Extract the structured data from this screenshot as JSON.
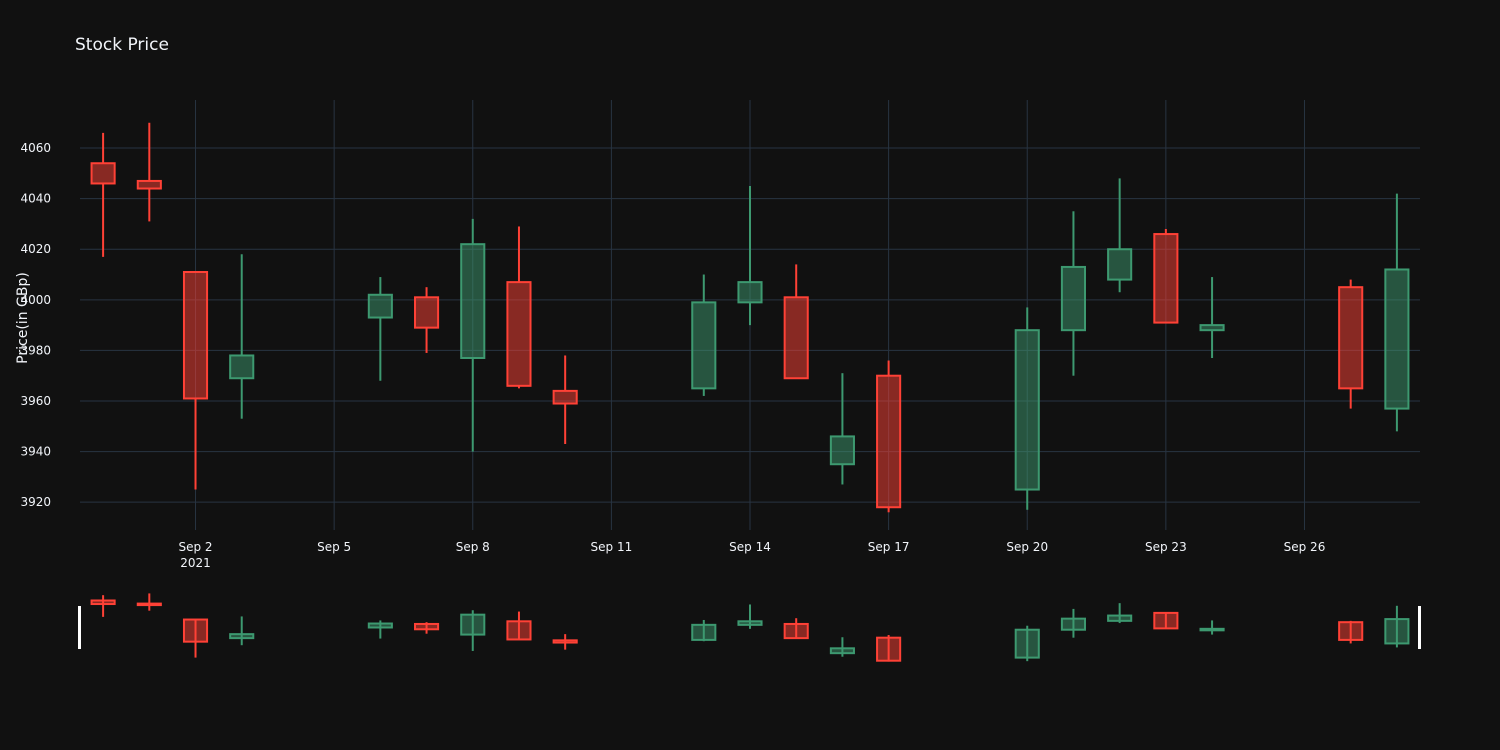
{
  "chart_data": {
    "type": "candlestick",
    "title": "Stock Price",
    "ylabel": "Price(in GBp)",
    "xlabel": "",
    "ylim": [
      3909,
      4079
    ],
    "x_range": [
      "2021-08-31",
      "2021-09-28"
    ],
    "y_ticks": [
      3920,
      3940,
      3960,
      3980,
      4000,
      4020,
      4040,
      4060
    ],
    "x_ticks": [
      {
        "date": "2021-09-02",
        "label": "Sep 2",
        "sublabel": "2021"
      },
      {
        "date": "2021-09-05",
        "label": "Sep 5",
        "sublabel": ""
      },
      {
        "date": "2021-09-08",
        "label": "Sep 8",
        "sublabel": ""
      },
      {
        "date": "2021-09-11",
        "label": "Sep 11",
        "sublabel": ""
      },
      {
        "date": "2021-09-14",
        "label": "Sep 14",
        "sublabel": ""
      },
      {
        "date": "2021-09-17",
        "label": "Sep 17",
        "sublabel": ""
      },
      {
        "date": "2021-09-20",
        "label": "Sep 20",
        "sublabel": ""
      },
      {
        "date": "2021-09-23",
        "label": "Sep 23",
        "sublabel": ""
      },
      {
        "date": "2021-09-26",
        "label": "Sep 26",
        "sublabel": ""
      }
    ],
    "colors": {
      "increasing": "#3d9970",
      "decreasing": "#ff4136",
      "background": "#111111",
      "grid": "#283442"
    },
    "rangeslider": true,
    "grid": true,
    "candles": [
      {
        "date": "2021-08-31",
        "open": 4054,
        "high": 4066,
        "low": 4017,
        "close": 4046
      },
      {
        "date": "2021-09-01",
        "open": 4047,
        "high": 4070,
        "low": 4031,
        "close": 4044
      },
      {
        "date": "2021-09-02",
        "open": 4011,
        "high": 4011,
        "low": 3925,
        "close": 3961
      },
      {
        "date": "2021-09-03",
        "open": 3969,
        "high": 4018,
        "low": 3953,
        "close": 3978
      },
      {
        "date": "2021-09-06",
        "open": 3993,
        "high": 4009,
        "low": 3968,
        "close": 4002
      },
      {
        "date": "2021-09-07",
        "open": 4001,
        "high": 4005,
        "low": 3979,
        "close": 3989
      },
      {
        "date": "2021-09-08",
        "open": 3977,
        "high": 4032,
        "low": 3940,
        "close": 4022
      },
      {
        "date": "2021-09-09",
        "open": 4007,
        "high": 4029,
        "low": 3965,
        "close": 3966
      },
      {
        "date": "2021-09-10",
        "open": 3964,
        "high": 3978,
        "low": 3943,
        "close": 3959
      },
      {
        "date": "2021-09-13",
        "open": 3965,
        "high": 4010,
        "low": 3962,
        "close": 3999
      },
      {
        "date": "2021-09-14",
        "open": 3999,
        "high": 4045,
        "low": 3990,
        "close": 4007
      },
      {
        "date": "2021-09-15",
        "open": 4001,
        "high": 4014,
        "low": 3969,
        "close": 3969
      },
      {
        "date": "2021-09-16",
        "open": 3935,
        "high": 3971,
        "low": 3927,
        "close": 3946
      },
      {
        "date": "2021-09-17",
        "open": 3970,
        "high": 3976,
        "low": 3916,
        "close": 3918
      },
      {
        "date": "2021-09-20",
        "open": 3925,
        "high": 3997,
        "low": 3917,
        "close": 3988
      },
      {
        "date": "2021-09-21",
        "open": 3988,
        "high": 4035,
        "low": 3970,
        "close": 4013
      },
      {
        "date": "2021-09-22",
        "open": 4008,
        "high": 4048,
        "low": 4003,
        "close": 4020
      },
      {
        "date": "2021-09-23",
        "open": 4026,
        "high": 4028,
        "low": 3991,
        "close": 3991
      },
      {
        "date": "2021-09-24",
        "open": 3988,
        "high": 4009,
        "low": 3977,
        "close": 3990
      },
      {
        "date": "2021-09-27",
        "open": 4005,
        "high": 4008,
        "low": 3957,
        "close": 3965
      },
      {
        "date": "2021-09-28",
        "open": 3957,
        "high": 4042,
        "low": 3948,
        "close": 4012
      }
    ]
  }
}
